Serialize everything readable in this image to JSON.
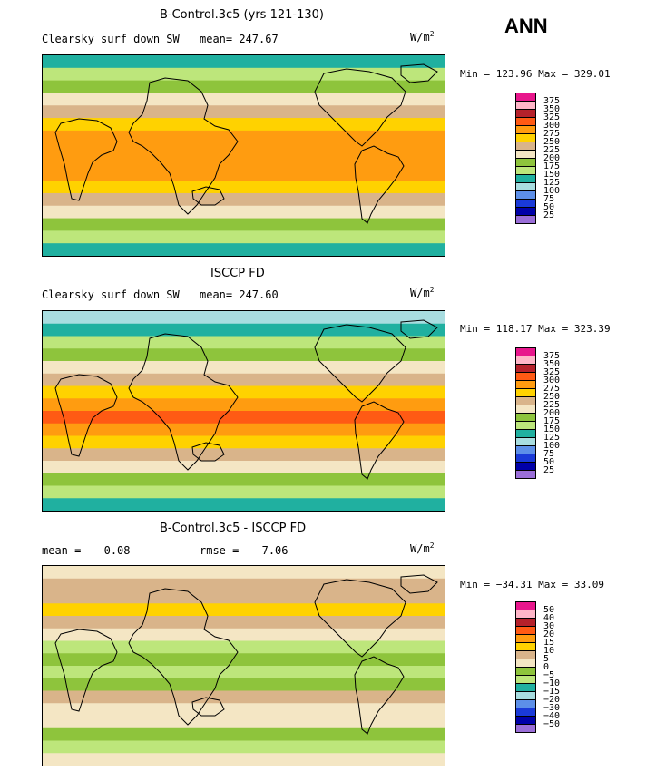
{
  "season": "ANN",
  "panels": [
    {
      "title": "B-Control.3c5 (yrs 121-130)",
      "variable": "Clearsky surf down SW",
      "mean_label": "mean=",
      "mean_value": "247.67",
      "units": "W/m",
      "units_exp": "2",
      "min_label": "Min =",
      "min_value": "123.96",
      "max_label": "Max =",
      "max_value": "329.01",
      "levels": [
        "375",
        "350",
        "325",
        "300",
        "275",
        "250",
        "225",
        "200",
        "175",
        "150",
        "125",
        "100",
        "75",
        "50",
        "25"
      ],
      "colors": [
        "#e8168c",
        "#ffb6c8",
        "#b5212b",
        "#ff5a14",
        "#ff9c10",
        "#ffd200",
        "#d9b48a",
        "#f4e6c4",
        "#8ec43c",
        "#bde67b",
        "#20b0a0",
        "#a8dde0",
        "#5d8fe8",
        "#1a3ad8",
        "#0000a8",
        "#9a6ed8"
      ],
      "bands": [
        "#20b0a0",
        "#bde67b",
        "#8ec43c",
        "#f4e6c4",
        "#d9b48a",
        "#ffd200",
        "#ff9c10",
        "#ff9c10",
        "#ff9c10",
        "#ff9c10",
        "#ffd200",
        "#d9b48a",
        "#f4e6c4",
        "#8ec43c",
        "#bde67b",
        "#20b0a0"
      ]
    },
    {
      "title": "ISCCP FD",
      "variable": "Clearsky surf down SW",
      "mean_label": "mean=",
      "mean_value": "247.60",
      "units": "W/m",
      "units_exp": "2",
      "min_label": "Min =",
      "min_value": "118.17",
      "max_label": "Max =",
      "max_value": "323.39",
      "levels": [
        "375",
        "350",
        "325",
        "300",
        "275",
        "250",
        "225",
        "200",
        "175",
        "150",
        "125",
        "100",
        "75",
        "50",
        "25"
      ],
      "colors": [
        "#e8168c",
        "#ffb6c8",
        "#b5212b",
        "#ff5a14",
        "#ff9c10",
        "#ffd200",
        "#d9b48a",
        "#f4e6c4",
        "#8ec43c",
        "#bde67b",
        "#20b0a0",
        "#a8dde0",
        "#5d8fe8",
        "#1a3ad8",
        "#0000a8",
        "#9a6ed8"
      ],
      "bands": [
        "#a8dde0",
        "#20b0a0",
        "#bde67b",
        "#8ec43c",
        "#f4e6c4",
        "#d9b48a",
        "#ffd200",
        "#ff9c10",
        "#ff5a14",
        "#ff9c10",
        "#ffd200",
        "#d9b48a",
        "#f4e6c4",
        "#8ec43c",
        "#bde67b",
        "#20b0a0"
      ]
    },
    {
      "title": "B-Control.3c5 - ISCCP FD",
      "mean_label": "mean =",
      "mean_value": "0.08",
      "rmse_label": "rmse =",
      "rmse_value": "7.06",
      "units": "W/m",
      "units_exp": "2",
      "min_label": "Min =",
      "min_value": "−34.31",
      "max_label": "Max =",
      "max_value": "33.09",
      "levels": [
        "50",
        "40",
        "30",
        "20",
        "15",
        "10",
        "5",
        "0",
        "−5",
        "−10",
        "−15",
        "−20",
        "−30",
        "−40",
        "−50"
      ],
      "colors": [
        "#e8168c",
        "#ffb6c8",
        "#b5212b",
        "#ff5a14",
        "#ff9c10",
        "#ffd200",
        "#d9b48a",
        "#f4e6c4",
        "#8ec43c",
        "#bde67b",
        "#20b0a0",
        "#a8dde0",
        "#5d8fe8",
        "#1a3ad8",
        "#0000a8",
        "#9a6ed8"
      ],
      "bands": [
        "#f4e6c4",
        "#d9b48a",
        "#d9b48a",
        "#ffd200",
        "#d9b48a",
        "#f4e6c4",
        "#bde67b",
        "#8ec43c",
        "#bde67b",
        "#8ec43c",
        "#d9b48a",
        "#f4e6c4",
        "#f4e6c4",
        "#8ec43c",
        "#bde67b",
        "#f4e6c4"
      ]
    }
  ]
}
